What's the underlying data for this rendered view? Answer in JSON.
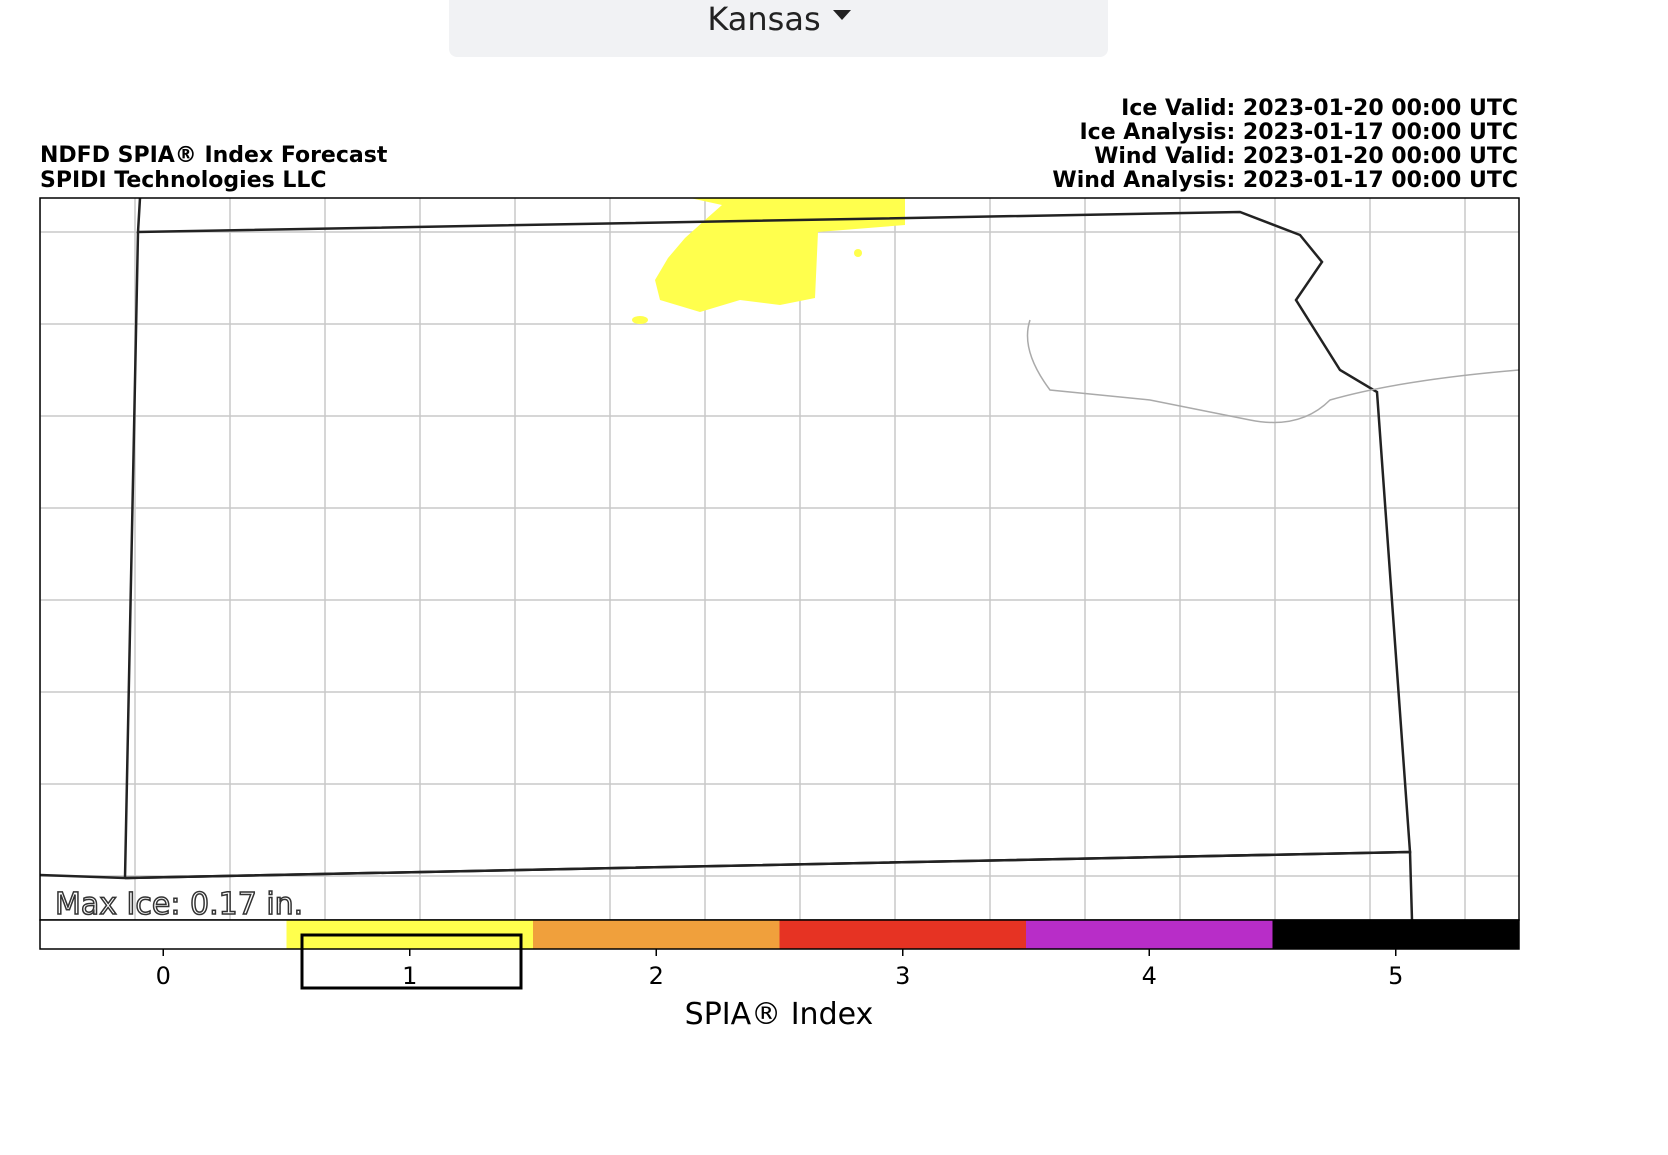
{
  "dropdown": {
    "label": "Kansas"
  },
  "map": {
    "title": "NDFD SPIA® Index Forecast",
    "credit": "SPIDI Technologies LLC",
    "times": [
      "Ice Valid: 2023-01-20 00:00 UTC",
      "Ice Analysis: 2023-01-17 00:00 UTC",
      "Wind Valid: 2023-01-20 00:00 UTC",
      "Wind Analysis: 2023-01-17 00:00 UTC"
    ],
    "max_ice": "Max Ice: 0.17 in."
  },
  "colorbar": {
    "label": "SPIA® Index",
    "xlim": [
      -0.5,
      5.5
    ],
    "xticks": [
      0,
      1,
      2,
      3,
      4,
      5
    ],
    "bins": [
      -0.5,
      0.5,
      1.5,
      2.5,
      3.5,
      4.5,
      5.5
    ],
    "colors": [
      "#ffffff",
      "#ffff4d",
      "#f0a03c",
      "#e63323",
      "#b82dc8",
      "#000000"
    ]
  }
}
